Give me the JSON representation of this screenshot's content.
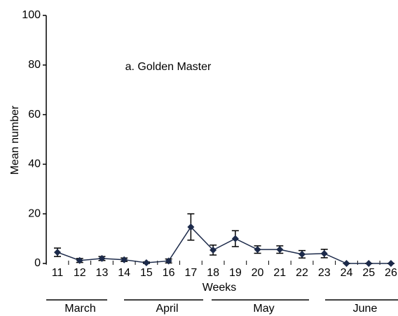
{
  "chart_data": {
    "type": "line",
    "annotation": "a. Golden Master",
    "y_label": "Mean number",
    "x_label": "Weeks",
    "categories": [
      "11",
      "12",
      "13",
      "14",
      "15",
      "16",
      "17",
      "18",
      "19",
      "20",
      "21",
      "22",
      "23",
      "24",
      "25",
      "26"
    ],
    "series": [
      {
        "name": "Golden Master",
        "color": "#1c2a4a",
        "values": [
          4.5,
          1.2,
          2,
          1.5,
          0.3,
          1,
          14.7,
          5.4,
          10,
          5.6,
          5.6,
          3.7,
          4,
          0,
          0,
          0
        ],
        "errors": [
          1.7,
          0.8,
          0.8,
          0.7,
          0.3,
          0.8,
          5.3,
          2,
          3.2,
          1.5,
          1.5,
          1.5,
          1.7,
          0,
          0,
          0
        ]
      }
    ],
    "months": [
      "March",
      "April",
      "May",
      "June"
    ],
    "ylim": [
      0,
      100
    ],
    "yticks": [
      0,
      20,
      40,
      60,
      80,
      100
    ]
  }
}
